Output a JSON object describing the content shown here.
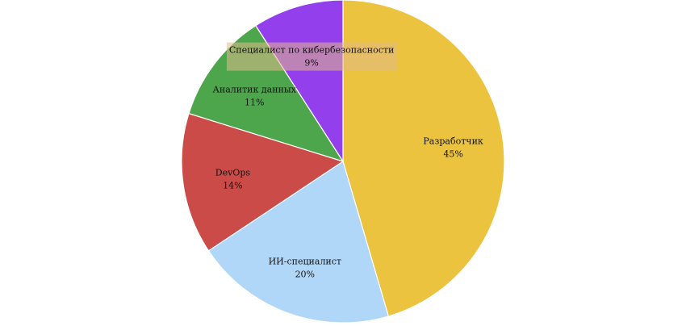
{
  "chart_data": {
    "type": "pie",
    "title": "",
    "start_angle_deg": 0,
    "direction": "clockwise",
    "slices": [
      {
        "label": "Разработчик",
        "value": 45,
        "value_label": "45%",
        "color": "#EBC33F"
      },
      {
        "label": "ИИ-специалист",
        "value": 20,
        "value_label": "20%",
        "color": "#B0D7F8"
      },
      {
        "label": "DevOps",
        "value": 14,
        "value_label": "14%",
        "color": "#CB4B48"
      },
      {
        "label": "Аналитик данных",
        "value": 11,
        "value_label": "11%",
        "color": "#4EA64C"
      },
      {
        "label": "Специалист по кибербезопасности",
        "value": 9,
        "value_label": "9%",
        "color": "#9340EC"
      }
    ],
    "highlight_label_box": "Специалист по кибербезопасности"
  }
}
